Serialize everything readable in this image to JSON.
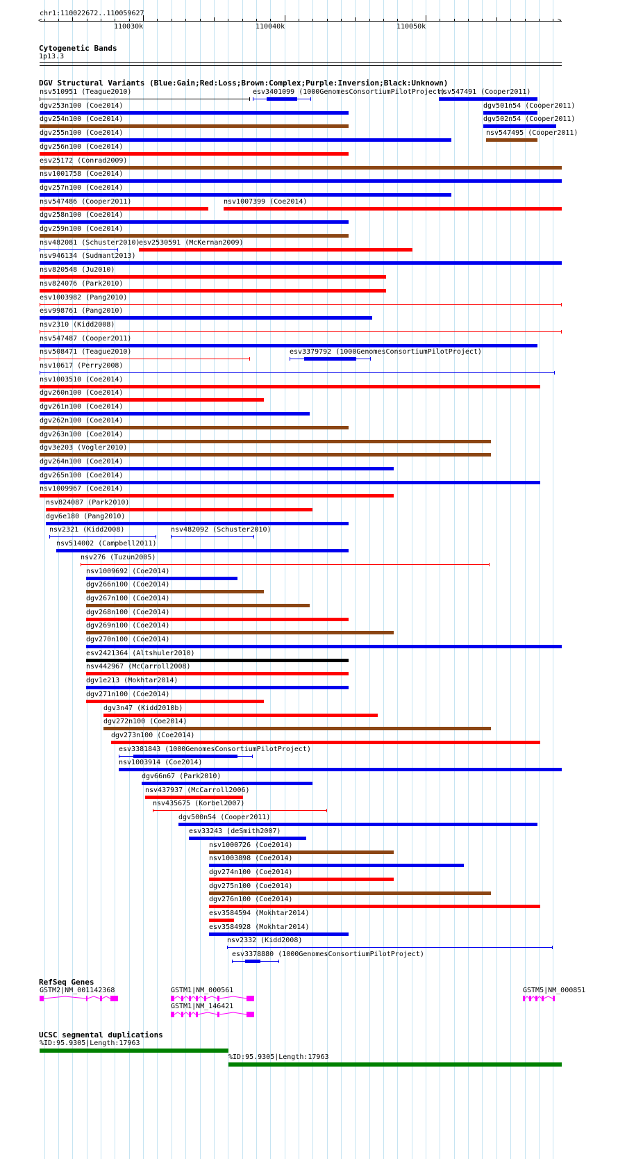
{
  "ruler": {
    "coords": "chr1:110022672..110059627",
    "ticks": [
      "110030k",
      "110040k",
      "110050k"
    ]
  },
  "cytoband": {
    "title": "Cytogenetic Bands",
    "band": "1p13.3"
  },
  "dgv": {
    "title": "DGV Structural Variants (Blue:Gain;Red:Loss;Brown:Complex;Purple:Inversion;Black:Unknown)",
    "colors": {
      "gain": "#0000ee",
      "loss": "#ff0000",
      "complex": "#8b4513",
      "unknown": "#000000"
    },
    "features": [
      {
        "label": "nsv510951 (Teague2010)",
        "type": "unknown",
        "style": "line",
        "start": 110022672,
        "end": 110037579,
        "row": 0
      },
      {
        "label": "esv3401099 (1000GenomesConsortiumPilotProject)",
        "type": "gain",
        "style": "exon",
        "start": 110037775,
        "end": 110041899,
        "row": 0,
        "blocks": [
          [
            110038757,
            110040918
          ]
        ]
      },
      {
        "label": "nsv547491 (Cooper2011)",
        "type": "gain",
        "style": "bar",
        "start": 110050938,
        "end": 110057911,
        "row": 0
      },
      {
        "label": "dgv253n100 (Coe2014)",
        "type": "gain",
        "style": "bar",
        "start": 110022672,
        "end": 110044551,
        "row": 1
      },
      {
        "label": "dgv501n54 (Cooper2011)",
        "type": "gain",
        "style": "bar",
        "start": 110054081,
        "end": 110057911,
        "row": 1
      },
      {
        "label": "dgv254n100 (Coe2014)",
        "type": "complex",
        "style": "bar",
        "start": 110022672,
        "end": 110044551,
        "row": 2
      },
      {
        "label": "dgv502n54 (Cooper2011)",
        "type": "gain",
        "style": "bar",
        "start": 110054081,
        "end": 110059235,
        "row": 2
      },
      {
        "label": "dgv255n100 (Coe2014)",
        "type": "gain",
        "style": "bar",
        "start": 110022672,
        "end": 110051822,
        "row": 3
      },
      {
        "label": "nsv547495 (Cooper2011)",
        "type": "complex",
        "style": "bar",
        "start": 110054278,
        "end": 110057911,
        "row": 3
      },
      {
        "label": "dgv256n100 (Coe2014)",
        "type": "loss",
        "style": "bar",
        "start": 110022672,
        "end": 110044551,
        "row": 4
      },
      {
        "label": "esv25172 (Conrad2009)",
        "type": "complex",
        "style": "bar",
        "start": 110022672,
        "end": 110059627,
        "row": 5
      },
      {
        "label": "nsv1001758 (Coe2014)",
        "type": "gain",
        "style": "bar",
        "start": 110022672,
        "end": 110059627,
        "row": 6
      },
      {
        "label": "dgv257n100 (Coe2014)",
        "type": "gain",
        "style": "bar",
        "start": 110022672,
        "end": 110051822,
        "row": 7
      },
      {
        "label": "nsv547486 (Cooper2011)",
        "type": "loss",
        "style": "bar",
        "start": 110022672,
        "end": 110034634,
        "row": 8
      },
      {
        "label": "nsv1007399 (Coe2014)",
        "type": "loss",
        "style": "bar",
        "start": 110035714,
        "end": 110059627,
        "row": 8
      },
      {
        "label": "dgv258n100 (Coe2014)",
        "type": "gain",
        "style": "bar",
        "start": 110022672,
        "end": 110044551,
        "row": 9
      },
      {
        "label": "dgv259n100 (Coe2014)",
        "type": "complex",
        "style": "bar",
        "start": 110022672,
        "end": 110044551,
        "row": 10
      },
      {
        "label": "nsv482081 (Schuster2010)",
        "type": "gain",
        "style": "line",
        "start": 110022672,
        "end": 110028222,
        "row": 11
      },
      {
        "label": "esv2530591 (McKernan2009)",
        "type": "loss",
        "style": "bar",
        "start": 110029694,
        "end": 110049074,
        "row": 11
      },
      {
        "label": "nsv946134 (Sudmant2013)",
        "type": "gain",
        "style": "bar",
        "start": 110022672,
        "end": 110059627,
        "row": 12
      },
      {
        "label": "nsv820548 (Ju2010)",
        "type": "loss",
        "style": "bar",
        "start": 110022672,
        "end": 110047208,
        "row": 13
      },
      {
        "label": "nsv824076 (Park2010)",
        "type": "loss",
        "style": "bar",
        "start": 110022672,
        "end": 110047208,
        "row": 14
      },
      {
        "label": "esv1003982 (Pang2010)",
        "type": "loss",
        "style": "line",
        "start": 110022672,
        "end": 110059627,
        "row": 15
      },
      {
        "label": "esv998761 (Pang2010)",
        "type": "gain",
        "style": "bar",
        "start": 110022672,
        "end": 110046226,
        "row": 16
      },
      {
        "label": "nsv2310 (Kidd2008)",
        "type": "loss",
        "style": "line",
        "start": 110022672,
        "end": 110059627,
        "row": 17
      },
      {
        "label": "nsv547487 (Cooper2011)",
        "type": "gain",
        "style": "bar",
        "start": 110022672,
        "end": 110057911,
        "row": 18
      },
      {
        "label": "nsv508471 (Teague2010)",
        "type": "loss",
        "style": "line",
        "start": 110022672,
        "end": 110037579,
        "row": 19
      },
      {
        "label": "esv3379792 (1000GenomesConsortiumPilotProject)",
        "type": "gain",
        "style": "exon",
        "start": 110040378,
        "end": 110046128,
        "row": 19,
        "blocks": [
          [
            110041409,
            110045097
          ]
        ]
      },
      {
        "label": "nsv10617 (Perry2008)",
        "type": "gain",
        "style": "line",
        "start": 110022672,
        "end": 110059137,
        "row": 20
      },
      {
        "label": "nsv1003510 (Coe2014)",
        "type": "loss",
        "style": "bar",
        "start": 110022672,
        "end": 110058107,
        "row": 21
      },
      {
        "label": "dgv260n100 (Coe2014)",
        "type": "loss",
        "style": "bar",
        "start": 110022672,
        "end": 110038561,
        "row": 22
      },
      {
        "label": "dgv261n100 (Coe2014)",
        "type": "gain",
        "style": "bar",
        "start": 110022672,
        "end": 110041801,
        "row": 23
      },
      {
        "label": "dgv262n100 (Coe2014)",
        "type": "complex",
        "style": "bar",
        "start": 110022672,
        "end": 110044551,
        "row": 24
      },
      {
        "label": "dgv263n100 (Coe2014)",
        "type": "complex",
        "style": "bar",
        "start": 110022672,
        "end": 110054622,
        "row": 25
      },
      {
        "label": "dgv3e203 (Vogler2010)",
        "type": "complex",
        "style": "bar",
        "start": 110022672,
        "end": 110054622,
        "row": 26
      },
      {
        "label": "dgv264n100 (Coe2014)",
        "type": "gain",
        "style": "bar",
        "start": 110022672,
        "end": 110047747,
        "row": 27
      },
      {
        "label": "dgv265n100 (Coe2014)",
        "type": "gain",
        "style": "bar",
        "start": 110022672,
        "end": 110058107,
        "row": 28
      },
      {
        "label": "nsv1009967 (Coe2014)",
        "type": "loss",
        "style": "bar",
        "start": 110022672,
        "end": 110047747,
        "row": 29
      },
      {
        "label": "nsv824087 (Park2010)",
        "type": "loss",
        "style": "bar",
        "start": 110023114,
        "end": 110041997,
        "row": 30
      },
      {
        "label": "dgv6e180 (Pang2010)",
        "type": "gain",
        "style": "bar",
        "start": 110023114,
        "end": 110044551,
        "row": 31
      },
      {
        "label": "nsv2321 (Kidd2008)",
        "type": "gain",
        "style": "line",
        "start": 110023359,
        "end": 110030922,
        "row": 32
      },
      {
        "label": "nsv482092 (Schuster2010)",
        "type": "gain",
        "style": "line",
        "start": 110031953,
        "end": 110037874,
        "row": 32
      },
      {
        "label": "nsv514002 (Campbell2011)",
        "type": "gain",
        "style": "bar",
        "start": 110023850,
        "end": 110044551,
        "row": 33
      },
      {
        "label": "nsv276 (Tuzun2005)",
        "type": "loss",
        "style": "line",
        "start": 110025569,
        "end": 110054523,
        "row": 34
      },
      {
        "label": "nsv1009692 (Coe2014)",
        "type": "gain",
        "style": "bar",
        "start": 110025962,
        "end": 110036695,
        "row": 35
      },
      {
        "label": "dgv266n100 (Coe2014)",
        "type": "complex",
        "style": "bar",
        "start": 110025962,
        "end": 110038561,
        "row": 36
      },
      {
        "label": "dgv267n100 (Coe2014)",
        "type": "complex",
        "style": "bar",
        "start": 110025962,
        "end": 110041801,
        "row": 37
      },
      {
        "label": "dgv268n100 (Coe2014)",
        "type": "loss",
        "style": "bar",
        "start": 110025962,
        "end": 110044551,
        "row": 38
      },
      {
        "label": "dgv269n100 (Coe2014)",
        "type": "complex",
        "style": "bar",
        "start": 110025962,
        "end": 110047747,
        "row": 39
      },
      {
        "label": "dgv270n100 (Coe2014)",
        "type": "gain",
        "style": "bar",
        "start": 110025962,
        "end": 110059627,
        "row": 40
      },
      {
        "label": "esv2421364 (Altshuler2010)",
        "type": "unknown",
        "style": "bar",
        "start": 110025962,
        "end": 110044551,
        "row": 41
      },
      {
        "label": "nsv442967 (McCarroll2008)",
        "type": "loss",
        "style": "bar",
        "start": 110025962,
        "end": 110044551,
        "row": 42
      },
      {
        "label": "dgv1e213 (Mokhtar2014)",
        "type": "gain",
        "style": "bar",
        "start": 110025962,
        "end": 110044551,
        "row": 43
      },
      {
        "label": "dgv271n100 (Coe2014)",
        "type": "loss",
        "style": "bar",
        "start": 110025962,
        "end": 110038561,
        "row": 44
      },
      {
        "label": "dgv3n47 (Kidd2010b)",
        "type": "loss",
        "style": "bar",
        "start": 110027189,
        "end": 110046619,
        "row": 45
      },
      {
        "label": "dgv272n100 (Coe2014)",
        "type": "complex",
        "style": "bar",
        "start": 110027189,
        "end": 110054622,
        "row": 46
      },
      {
        "label": "dgv273n100 (Coe2014)",
        "type": "loss",
        "style": "bar",
        "start": 110027729,
        "end": 110058107,
        "row": 47
      },
      {
        "label": "esv3381843 (1000GenomesConsortiumPilotProject)",
        "type": "gain",
        "style": "exon",
        "start": 110028271,
        "end": 110037775,
        "row": 48,
        "blocks": [
          [
            110029301,
            110036695
          ]
        ]
      },
      {
        "label": "nsv1003914 (Coe2014)",
        "type": "gain",
        "style": "bar",
        "start": 110028271,
        "end": 110059627,
        "row": 49
      },
      {
        "label": "dgv66n67 (Park2010)",
        "type": "gain",
        "style": "bar",
        "start": 110029891,
        "end": 110041997,
        "row": 50
      },
      {
        "label": "nsv437937 (McCarroll2006)",
        "type": "loss",
        "style": "bar",
        "start": 110030137,
        "end": 110037088,
        "row": 51
      },
      {
        "label": "nsv435675 (Korbel2007)",
        "type": "loss",
        "style": "line",
        "start": 110030677,
        "end": 110043028,
        "row": 52
      },
      {
        "label": "dgv500n54 (Cooper2011)",
        "type": "gain",
        "style": "bar",
        "start": 110032493,
        "end": 110057911,
        "row": 53
      },
      {
        "label": "esv33243 (deSmith2007)",
        "type": "gain",
        "style": "bar",
        "start": 110033229,
        "end": 110041555,
        "row": 54
      },
      {
        "label": "nsv1000726 (Coe2014)",
        "type": "complex",
        "style": "bar",
        "start": 110034654,
        "end": 110047747,
        "row": 55
      },
      {
        "label": "nsv1003898 (Coe2014)",
        "type": "gain",
        "style": "bar",
        "start": 110034654,
        "end": 110052705,
        "row": 56
      },
      {
        "label": "dgv274n100 (Coe2014)",
        "type": "loss",
        "style": "bar",
        "start": 110034654,
        "end": 110047747,
        "row": 57
      },
      {
        "label": "dgv275n100 (Coe2014)",
        "type": "complex",
        "style": "bar",
        "start": 110034654,
        "end": 110054622,
        "row": 58
      },
      {
        "label": "dgv276n100 (Coe2014)",
        "type": "loss",
        "style": "bar",
        "start": 110034654,
        "end": 110058107,
        "row": 59
      },
      {
        "label": "esv3584594 (Mokhtar2014)",
        "type": "loss",
        "style": "bar",
        "start": 110034654,
        "end": 110036450,
        "row": 60
      },
      {
        "label": "esv3584928 (Mokhtar2014)",
        "type": "gain",
        "style": "bar",
        "start": 110034654,
        "end": 110044551,
        "row": 61
      },
      {
        "label": "nsv2332 (Kidd2008)",
        "type": "gain",
        "style": "line",
        "start": 110035959,
        "end": 110058991,
        "row": 62
      },
      {
        "label": "esv3378880 (1000GenomesConsortiumPilotProject)",
        "type": "gain",
        "style": "exon",
        "start": 110036303,
        "end": 110039641,
        "row": 63,
        "blocks": [
          [
            110037236,
            110038316
          ]
        ]
      }
    ]
  },
  "refseq": {
    "title": "RefSeq Genes",
    "color": "#ff00ff",
    "genes": [
      {
        "label": "GSTM2|NM_001142368",
        "start": 110022672,
        "end": 110028222,
        "row": 0,
        "exons": [
          [
            110022672,
            110022967
          ],
          [
            110025962,
            110026060
          ],
          [
            110026944,
            110027091
          ],
          [
            110027680,
            110028222
          ]
        ]
      },
      {
        "label": "GSTM1|NM_000561",
        "start": 110031953,
        "end": 110037874,
        "row": 0,
        "exons": [
          [
            110031953,
            110032199
          ],
          [
            110032689,
            110032837
          ],
          [
            110033229,
            110033376
          ],
          [
            110033720,
            110033867
          ],
          [
            110034310,
            110034458
          ],
          [
            110035273,
            110035420
          ],
          [
            110037334,
            110037874
          ]
        ]
      },
      {
        "label": "GSTM1|NM_146421",
        "start": 110031953,
        "end": 110037874,
        "row": 1,
        "exons": [
          [
            110031953,
            110032199
          ],
          [
            110032689,
            110032837
          ],
          [
            110033229,
            110033376
          ],
          [
            110033720,
            110033867
          ],
          [
            110035273,
            110035420
          ],
          [
            110037334,
            110037874
          ]
        ]
      },
      {
        "label": "GSTM5|NM_000851",
        "start": 110056876,
        "end": 110059627,
        "row": 0,
        "exons": [
          [
            110056876,
            110057024
          ],
          [
            110057318,
            110057465
          ],
          [
            110057760,
            110057907
          ],
          [
            110058200,
            110058347
          ],
          [
            110058986,
            110059137
          ]
        ]
      }
    ]
  },
  "segdup": {
    "title": "UCSC segmental duplications",
    "color": "#008000",
    "features": [
      {
        "label": "%ID:95.9305|Length:17963",
        "start": 110022672,
        "end": 110036058,
        "row": 0
      },
      {
        "label": "%ID:95.9305|Length:17963",
        "start": 110036058,
        "end": 110059627,
        "row": 1
      }
    ]
  }
}
